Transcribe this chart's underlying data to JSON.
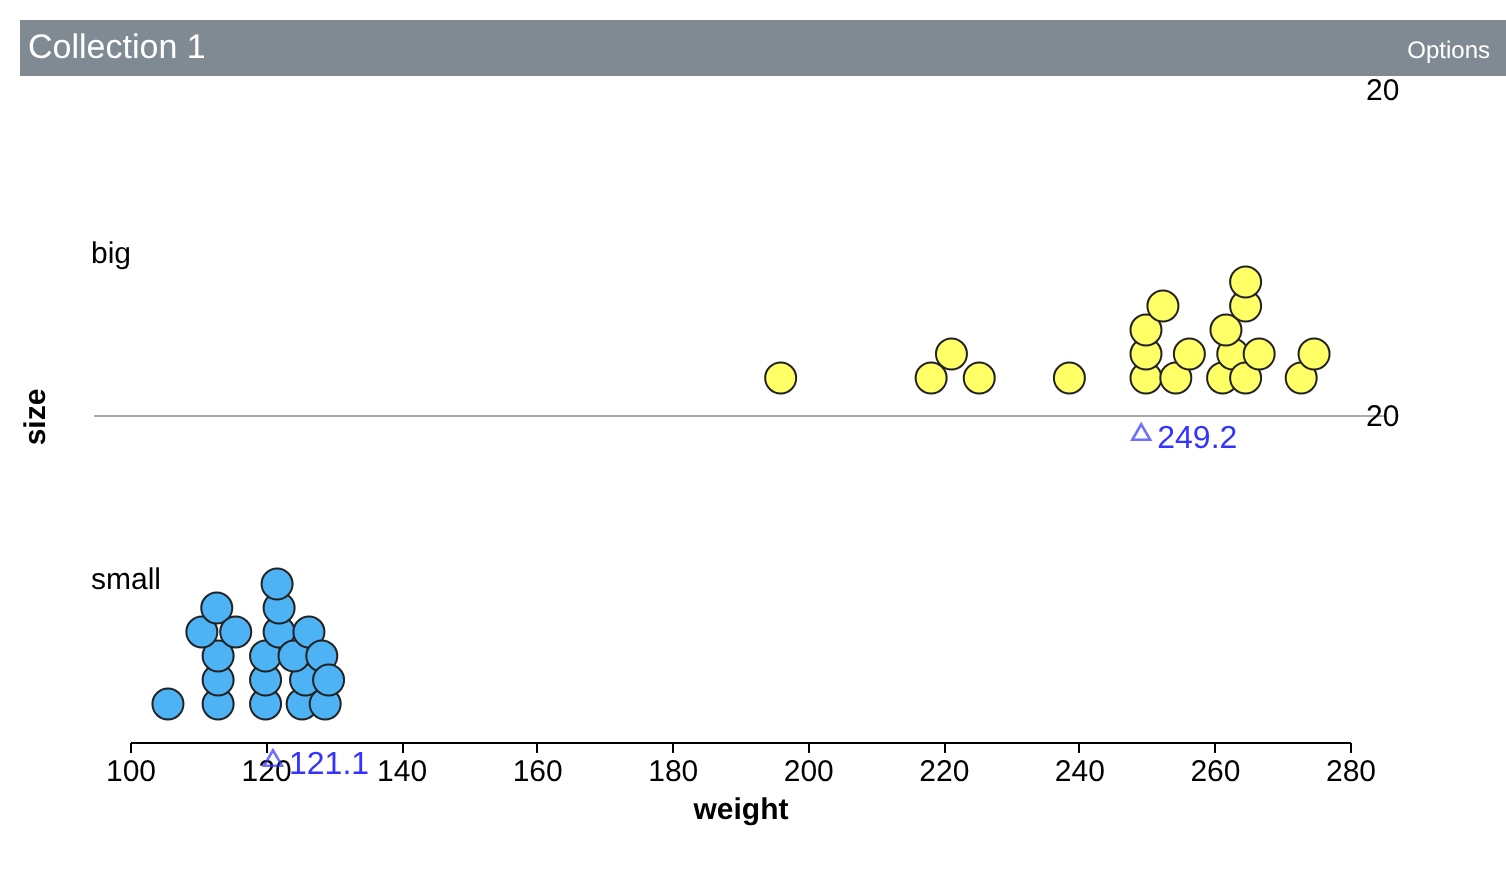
{
  "chart_data": {
    "type": "scatter",
    "orientation": "horizontal",
    "title": "Collection 1",
    "xlabel": "weight",
    "ylabel": "size",
    "categories": [
      "big",
      "small"
    ],
    "xlim": [
      100,
      280
    ],
    "xticks": [
      100,
      120,
      140,
      160,
      180,
      200,
      220,
      240,
      260,
      280
    ],
    "grid": false,
    "series": [
      {
        "color": "#ffff66",
        "x": [
          "big",
          "big",
          "big",
          "big",
          "big",
          "big",
          "big",
          "big",
          "big",
          "big",
          "big",
          "big",
          "big",
          "big",
          "big",
          "big",
          "big",
          "big",
          "big",
          "big"
        ],
        "values": [
          196.0,
          218.2,
          221.2,
          225.3,
          238.6,
          249.9,
          249.9,
          249.9,
          252.4,
          254.3,
          256.3,
          261.2,
          262.7,
          264.6,
          261.7,
          264.6,
          264.6,
          266.6,
          272.8,
          274.7
        ]
      },
      {
        "color": "#4db3f5",
        "x": [
          "small",
          "small",
          "small",
          "small",
          "small",
          "small",
          "small",
          "small",
          "small",
          "small",
          "small",
          "small",
          "small",
          "small",
          "small",
          "small",
          "small",
          "small",
          "small",
          "small"
        ],
        "values": [
          105.6,
          113.0,
          113.0,
          113.0,
          110.6,
          112.8,
          115.6,
          120.0,
          120.0,
          120.0,
          122.0,
          122.0,
          121.7,
          125.4,
          125.9,
          124.2,
          126.4,
          128.3,
          128.8,
          129.3
        ]
      }
    ],
    "annotations": [
      "Options",
      "20",
      "20",
      "249.2",
      "121.1"
    ]
  }
}
